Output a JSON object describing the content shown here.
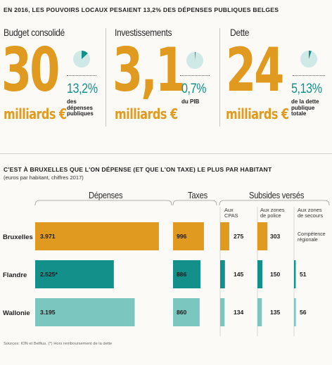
{
  "headline": "EN 2016, LES POUVOIRS LOCAUX PESAIENT 13,2% DES DÉPENSES PUBLIQUES BELGES",
  "kpis": [
    {
      "title": "Budget consolidé",
      "value": "30",
      "unit": "milliards €",
      "pct": "13,2%",
      "pct_value": 13.2,
      "note": "des\ndépenses\npubliques"
    },
    {
      "title": "Investissements",
      "value": "3,1",
      "unit": "milliards €",
      "pct": "0,7%",
      "pct_value": 0.7,
      "note": "du PIB"
    },
    {
      "title": "Dette",
      "value": "24",
      "unit": "milliards €",
      "pct": "5,13%",
      "pct_value": 5.13,
      "note": "de la dette\npublique\ntotale"
    }
  ],
  "section2": {
    "title": "C'EST À BRUXELLES QUE L'ON DÉPENSE (ET QUE L'ON TAXE) LE PLUS PAR HABITANT",
    "subtitle": "(euros par habitant, chiffres 2017)",
    "groups": {
      "depenses": "Dépenses",
      "taxes": "Taxes",
      "subsides": "Subsides versés"
    },
    "subcols": {
      "cpas": "Aux\nCPAS",
      "police": "Aux zones\nde police",
      "secours": "Aux zones\nde secours"
    },
    "competence": "Compétence\nrégionale"
  },
  "source": "Sources: ION et Belfius. (*) Hors remboursement de la dette",
  "colors": {
    "accent": "#e09a20",
    "teal": "#14908a",
    "lightteal": "#7cc6c0",
    "pie_bg": "#cfe9e6"
  },
  "chart_data": {
    "type": "bar",
    "categories": [
      "Bruxelles",
      "Flandre",
      "Wallonie"
    ],
    "series": [
      {
        "name": "Dépenses",
        "values": [
          3971,
          2525,
          3195
        ],
        "labels": [
          "3.971",
          "2.525*",
          "3.195"
        ],
        "max": 4200
      },
      {
        "name": "Taxes",
        "values": [
          996,
          886,
          860
        ],
        "labels": [
          "996",
          "886",
          "860"
        ],
        "max": 1020
      },
      {
        "name": "Aux CPAS",
        "values": [
          275,
          145,
          134
        ],
        "labels": [
          "275",
          "145",
          "134"
        ],
        "max": 320
      },
      {
        "name": "Aux zones de police",
        "values": [
          303,
          150,
          135
        ],
        "labels": [
          "303",
          "150",
          "135"
        ],
        "max": 320
      },
      {
        "name": "Aux zones de secours",
        "values": [
          null,
          51,
          56
        ],
        "labels": [
          "",
          "51",
          "56"
        ],
        "max": 320
      }
    ],
    "row_colors": [
      "#e09a20",
      "#14908a",
      "#7cc6c0"
    ]
  }
}
